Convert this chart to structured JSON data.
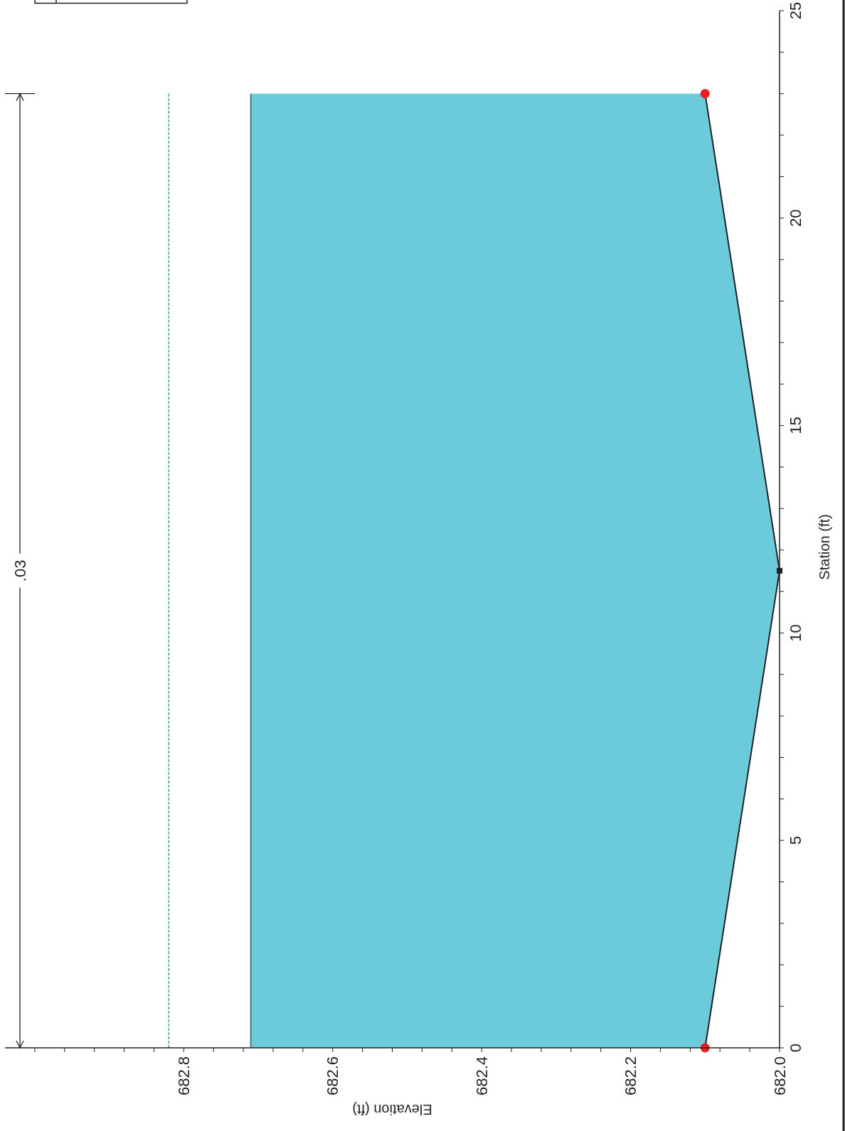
{
  "chart_data": {
    "type": "line",
    "orientation": "horizontal",
    "xlabel": "Elevation (ft)",
    "ylabel": "Station (ft)",
    "xlim": [
      683.04,
      682.0
    ],
    "ylim": [
      0,
      25
    ],
    "yticks": [
      0,
      {
        "value": 1,
        "label": null
      },
      {
        "value": 2,
        "label": null
      },
      {
        "value": 3,
        "label": null
      },
      {
        "value": 4,
        "label": null
      },
      5,
      {
        "value": 6,
        "label": null
      },
      {
        "value": 7,
        "label": null
      },
      {
        "value": 8,
        "label": null
      },
      {
        "value": 9,
        "label": null
      },
      10,
      {
        "value": 11,
        "label": null
      },
      {
        "value": 12,
        "label": null
      },
      {
        "value": 13,
        "label": null
      },
      {
        "value": 14,
        "label": null
      },
      15,
      {
        "value": 16,
        "label": null
      },
      {
        "value": 17,
        "label": null
      },
      {
        "value": 18,
        "label": null
      },
      {
        "value": 19,
        "label": null
      },
      20,
      {
        "value": 21,
        "label": null
      },
      {
        "value": 22,
        "label": null
      },
      {
        "value": 23,
        "label": null
      },
      {
        "value": 24,
        "label": null
      },
      25
    ],
    "xticks": [
      {
        "value": 683.0,
        "label": null
      },
      {
        "value": 682.96,
        "label": null
      },
      {
        "value": 682.92,
        "label": null
      },
      {
        "value": 682.88,
        "label": null
      },
      {
        "value": 682.84,
        "label": null
      },
      {
        "value": 682.8,
        "label": "682.8"
      },
      {
        "value": 682.76,
        "label": null
      },
      {
        "value": 682.72,
        "label": null
      },
      {
        "value": 682.68,
        "label": null
      },
      {
        "value": 682.64,
        "label": null
      },
      {
        "value": 682.6,
        "label": "682.6"
      },
      {
        "value": 682.56,
        "label": null
      },
      {
        "value": 682.52,
        "label": null
      },
      {
        "value": 682.48,
        "label": null
      },
      {
        "value": 682.44,
        "label": null
      },
      {
        "value": 682.4,
        "label": "682.4"
      },
      {
        "value": 682.36,
        "label": null
      },
      {
        "value": 682.32,
        "label": null
      },
      {
        "value": 682.28,
        "label": null
      },
      {
        "value": 682.24,
        "label": null
      },
      {
        "value": 682.2,
        "label": "682.2"
      },
      {
        "value": 682.16,
        "label": null
      },
      {
        "value": 682.12,
        "label": null
      },
      {
        "value": 682.08,
        "label": null
      },
      {
        "value": 682.04,
        "label": null
      },
      {
        "value": 682.0,
        "label": "682.0"
      }
    ],
    "series": [
      {
        "type": "area",
        "color": "#6ccbdb",
        "x": [
          0,
          11.5,
          23
        ],
        "values": [
          682.71,
          682.71,
          682.71
        ]
      },
      {
        "type": "line",
        "color": "#231f20",
        "x": [
          0,
          11.5,
          23
        ],
        "values": [
          682.1,
          682.0,
          682.1
        ]
      },
      {
        "type": "scatter",
        "color": "#ed1c24",
        "marker": "circle",
        "x": [
          0,
          23
        ],
        "values": [
          682.1,
          682.1
        ]
      },
      {
        "type": "scatter",
        "color": "#231f20",
        "marker": "square",
        "x": [
          11.5
        ],
        "values": [
          682.0
        ]
      }
    ],
    "ref_lines": [
      {
        "axis": "x",
        "value": 682.82,
        "color": "#00a651",
        "line_style": "dashed"
      }
    ],
    "annotations": [
      ".03"
    ],
    "grid": false
  }
}
